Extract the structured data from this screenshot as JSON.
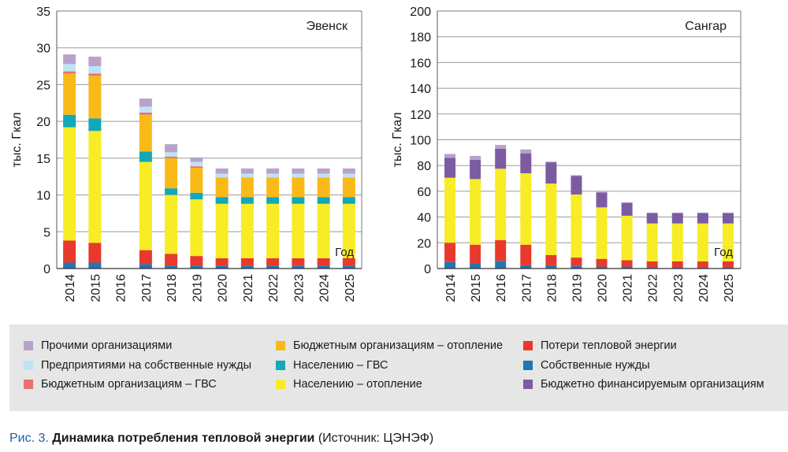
{
  "legend": [
    {
      "key": "prochie",
      "label": "Прочими организациями",
      "color": "#b7a3c9"
    },
    {
      "key": "predpr",
      "label": "Предприятиями на собственные нужды",
      "color": "#bfe3f5"
    },
    {
      "key": "byudzh_gvs",
      "label": "Бюджетным организациям – ГВС",
      "color": "#e57373"
    },
    {
      "key": "byudzh_otop",
      "label": "Бюджетным организациям – отопление",
      "color": "#f9b918"
    },
    {
      "key": "nasel_gvs",
      "label": "Населению – ГВС",
      "color": "#12a8b8"
    },
    {
      "key": "nasel_otop",
      "label": "Населению – отопление",
      "color": "#f7ec25"
    },
    {
      "key": "poteri",
      "label": "Потери тепловой энергии",
      "color": "#e8392c"
    },
    {
      "key": "sobstv",
      "label": "Собственные нужды",
      "color": "#2276b3"
    },
    {
      "key": "byudzh_fin",
      "label": "Бюджетно финансируемым организациям",
      "color": "#7b5ca3"
    }
  ],
  "caption": {
    "label": "Рис. 3.",
    "title": "Динамика потребления тепловой энергии",
    "source": "(Источник: ЦЭНЭФ)"
  },
  "chart_data": [
    {
      "type": "bar",
      "stacked": true,
      "title": "Эвенск",
      "ylabel": "тыс. Гкал",
      "xlabel": "Год",
      "ylim": [
        0,
        35
      ],
      "yticks": [
        0,
        5,
        10,
        15,
        20,
        25,
        30,
        35
      ],
      "grid": true,
      "categories": [
        "2014",
        "2015",
        "2016",
        "2017",
        "2018",
        "2019",
        "2020",
        "2021",
        "2022",
        "2023",
        "2024",
        "2025"
      ],
      "series": [
        {
          "name": "Собственные нужды",
          "color": "#2276b3",
          "values": [
            0.8,
            0.8,
            null,
            0.6,
            0.4,
            0.4,
            0.4,
            0.4,
            0.4,
            0.4,
            0.4,
            0.4
          ]
        },
        {
          "name": "Потери тепловой энергии",
          "color": "#e8392c",
          "values": [
            3.0,
            2.7,
            null,
            1.9,
            1.6,
            1.3,
            1.0,
            1.0,
            1.0,
            1.0,
            1.0,
            1.0
          ]
        },
        {
          "name": "Населению – отопление",
          "color": "#f7ec25",
          "values": [
            15.4,
            15.2,
            null,
            12.0,
            8.0,
            7.7,
            7.4,
            7.4,
            7.4,
            7.4,
            7.4,
            7.4
          ]
        },
        {
          "name": "Населению – ГВС",
          "color": "#12a8b8",
          "values": [
            1.7,
            1.7,
            null,
            1.4,
            0.9,
            0.9,
            0.9,
            0.9,
            0.9,
            0.9,
            0.9,
            0.9
          ]
        },
        {
          "name": "Бюджетным организациям – отопление",
          "color": "#f9b918",
          "values": [
            5.6,
            5.8,
            null,
            5.0,
            4.1,
            3.4,
            2.7,
            2.7,
            2.7,
            2.7,
            2.7,
            2.7
          ]
        },
        {
          "name": "Бюджетным организациям – ГВС",
          "color": "#e57373",
          "values": [
            0.3,
            0.3,
            null,
            0.3,
            0.2,
            0.2,
            0.0,
            0.0,
            0.0,
            0.0,
            0.0,
            0.0
          ]
        },
        {
          "name": "Предприятиями на собственные нужды",
          "color": "#bfe3f5",
          "values": [
            1.0,
            1.0,
            null,
            0.8,
            0.6,
            0.6,
            0.5,
            0.5,
            0.5,
            0.5,
            0.5,
            0.5
          ]
        },
        {
          "name": "Прочими организациями",
          "color": "#b7a3c9",
          "values": [
            1.3,
            1.3,
            null,
            1.1,
            1.1,
            0.6,
            0.7,
            0.7,
            0.7,
            0.7,
            0.7,
            0.7
          ]
        }
      ]
    },
    {
      "type": "bar",
      "stacked": true,
      "title": "Сангар",
      "ylabel": "тыс. Гкал",
      "xlabel": "Год",
      "ylim": [
        0,
        200
      ],
      "yticks": [
        0,
        20,
        40,
        60,
        80,
        100,
        120,
        140,
        160,
        180,
        200
      ],
      "grid": true,
      "categories": [
        "2014",
        "2015",
        "2016",
        "2017",
        "2018",
        "2019",
        "2020",
        "2021",
        "2022",
        "2023",
        "2024",
        "2025"
      ],
      "series": [
        {
          "name": "Собственные нужды",
          "color": "#2276b3",
          "values": [
            5,
            4,
            6,
            2.5,
            2.5,
            2,
            1.5,
            1.5,
            1,
            1,
            1,
            1
          ]
        },
        {
          "name": "Потери тепловой энергии",
          "color": "#e8392c",
          "values": [
            15,
            14.5,
            16,
            16,
            8,
            6.5,
            6,
            5,
            4.5,
            4.5,
            4.5,
            4.5
          ]
        },
        {
          "name": "Населению – отопление",
          "color": "#f7ec25",
          "values": [
            50.5,
            51,
            55.5,
            55.5,
            55.5,
            49,
            40,
            34.5,
            29.5,
            29.5,
            29.5,
            29.5
          ]
        },
        {
          "name": "Бюджетно финансируемым организациям",
          "color": "#7b5ca3",
          "values": [
            15.5,
            15,
            15.5,
            15.5,
            16.5,
            14.5,
            11.5,
            10,
            8,
            8,
            8,
            8
          ]
        },
        {
          "name": "Прочими организациями",
          "color": "#b7a3c9",
          "values": [
            3,
            3,
            3,
            3,
            0.5,
            0.5,
            0.5,
            0.5,
            0.5,
            0.5,
            0.5,
            0.5
          ]
        }
      ]
    }
  ]
}
